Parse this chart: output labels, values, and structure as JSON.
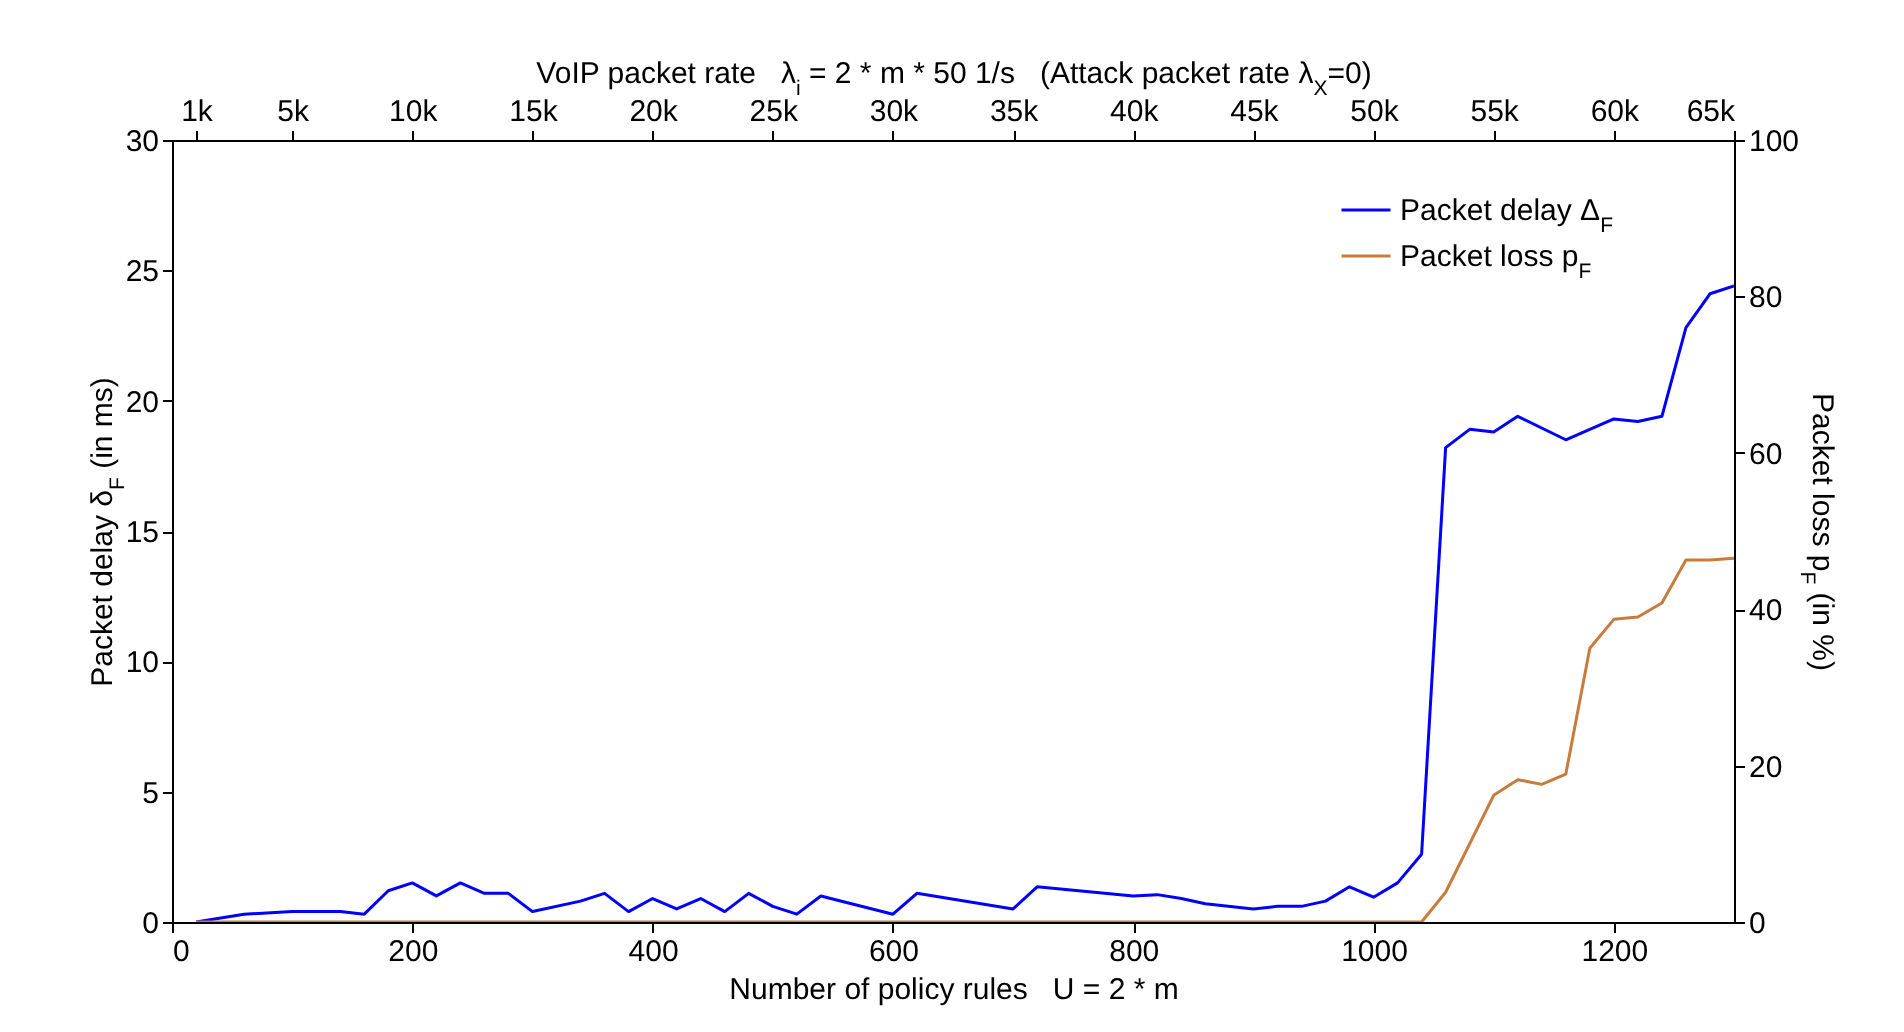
{
  "chart_data": {
    "type": "line",
    "xlabel": "Number of policy rules   U = 2 * m",
    "ylabel": "Packet delay δ$_{F}$ (in ms)",
    "y2label": "Packet loss p$_{F}$ (in %)",
    "x2label": "VoIP packet rate   λ$_{i}$ = 2 * m * 50 1/s   (Attack packet rate λ$_{X}$=0)",
    "xlim": [
      0,
      1300
    ],
    "xticks": [
      0,
      200,
      400,
      600,
      800,
      1000,
      1200
    ],
    "ylim": [
      0,
      30
    ],
    "yticks": [
      0,
      5,
      10,
      15,
      20,
      25,
      30
    ],
    "y2lim": [
      0,
      100
    ],
    "y2ticks": [
      0,
      20,
      40,
      60,
      80,
      100
    ],
    "x2lim": [
      0,
      65000
    ],
    "x2ticks": [
      {
        "value": 1000,
        "label": "1k"
      },
      {
        "value": 5000,
        "label": "5k"
      },
      {
        "value": 10000,
        "label": "10k"
      },
      {
        "value": 15000,
        "label": "15k"
      },
      {
        "value": 20000,
        "label": "20k"
      },
      {
        "value": 25000,
        "label": "25k"
      },
      {
        "value": 30000,
        "label": "30k"
      },
      {
        "value": 35000,
        "label": "35k"
      },
      {
        "value": 40000,
        "label": "40k"
      },
      {
        "value": 45000,
        "label": "45k"
      },
      {
        "value": 50000,
        "label": "50k"
      },
      {
        "value": 55000,
        "label": "55k"
      },
      {
        "value": 60000,
        "label": "60k"
      },
      {
        "value": 65000,
        "label": "65k"
      }
    ],
    "grid": false,
    "legend": "top right",
    "series": [
      {
        "name": "Packet delay Δ$_{F}$",
        "color": "#0000ff",
        "x": [
          20,
          60,
          100,
          140,
          160,
          180,
          200,
          220,
          240,
          260,
          280,
          300,
          340,
          360,
          380,
          400,
          420,
          440,
          460,
          480,
          500,
          520,
          540,
          600,
          620,
          700,
          720,
          800,
          820,
          840,
          860,
          900,
          920,
          940,
          960,
          980,
          1000,
          1020,
          1040,
          1060,
          1080,
          1100,
          1120,
          1160,
          1200,
          1220,
          1240,
          1260,
          1280,
          1300
        ],
        "values": [
          0,
          0.3,
          0.4,
          0.4,
          0.3,
          1.2,
          1.5,
          1.0,
          1.5,
          1.1,
          1.1,
          0.4,
          0.8,
          1.1,
          0.4,
          0.9,
          0.5,
          0.9,
          0.4,
          1.1,
          0.6,
          0.3,
          1.0,
          0.3,
          1.1,
          0.5,
          1.35,
          1.0,
          1.05,
          0.9,
          0.7,
          0.5,
          0.6,
          0.6,
          0.8,
          1.35,
          0.95,
          1.5,
          2.6,
          18.2,
          18.9,
          18.8,
          19.4,
          18.5,
          19.3,
          19.2,
          19.4,
          22.8,
          24.1,
          24.4
        ]
      },
      {
        "name": "Packet loss p$_{F}$",
        "color": "#c87c3c",
        "axis": "y2",
        "x": [
          20,
          1040,
          1060,
          1100,
          1120,
          1140,
          1160,
          1180,
          1200,
          1220,
          1240,
          1260,
          1280,
          1300
        ],
        "values": [
          0,
          0,
          3.8,
          16.2,
          18.2,
          17.6,
          18.9,
          35,
          38.7,
          39,
          40.8,
          46.3,
          46.3,
          46.5
        ]
      }
    ]
  }
}
